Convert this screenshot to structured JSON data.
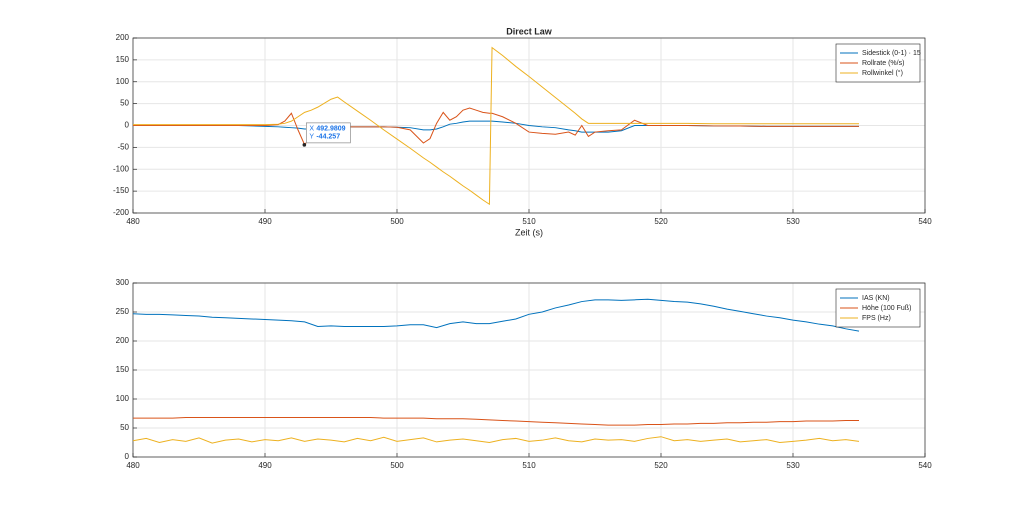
{
  "chart_data": [
    {
      "type": "line",
      "title": "Direct Law",
      "x_label": "Zeit (s)",
      "xlim": [
        480,
        540
      ],
      "xticks": [
        480,
        490,
        500,
        510,
        520,
        530,
        540
      ],
      "ylim": [
        -200,
        200
      ],
      "yticks": [
        -200,
        -150,
        -100,
        -50,
        0,
        50,
        100,
        150,
        200
      ],
      "grid": true,
      "legend": "northeast",
      "x": [
        480,
        482,
        484,
        486,
        488,
        490,
        491,
        491.5,
        492,
        492.5,
        493,
        493.5,
        494,
        495,
        495.5,
        496,
        497,
        498,
        499,
        500,
        501,
        502,
        502.5,
        503,
        503.5,
        504,
        504.5,
        505,
        505.5,
        506,
        506.5,
        507,
        507.2,
        508,
        509,
        510,
        511,
        512,
        513,
        513.5,
        514,
        514.5,
        515,
        516,
        517,
        518,
        519,
        520,
        522,
        524,
        526,
        528,
        530,
        532,
        535
      ],
      "series": [
        {
          "name": "Sidestick (0-1) · 15",
          "color": "#0072BD",
          "values": [
            0,
            0,
            0,
            0,
            0,
            -2,
            -3,
            -4,
            -5,
            -6,
            -8,
            -8,
            -8,
            -3,
            -3,
            -3,
            -3,
            -3,
            -3,
            -4,
            -5,
            -10,
            -10,
            -8,
            -3,
            3,
            5,
            8,
            10,
            10,
            10,
            10,
            10,
            8,
            5,
            0,
            -3,
            -5,
            -10,
            -12,
            -15,
            -15,
            -15,
            -15,
            -12,
            0,
            0,
            0,
            0,
            -1,
            -1,
            -2,
            -2,
            -2,
            -2
          ]
        },
        {
          "name": "Rollrate (%/s)",
          "color": "#D95319",
          "values": [
            0,
            0,
            0,
            0,
            0,
            0,
            2,
            10,
            28,
            -10,
            -44,
            -25,
            -3,
            -3,
            -3,
            -3,
            -3,
            -3,
            -3,
            -4,
            -10,
            -40,
            -30,
            5,
            30,
            12,
            20,
            35,
            40,
            35,
            30,
            28,
            28,
            20,
            5,
            -15,
            -18,
            -20,
            -15,
            -22,
            0,
            -25,
            -15,
            -12,
            -10,
            12,
            0,
            0,
            0,
            -1,
            -1,
            -2,
            -2,
            -2,
            -2
          ]
        },
        {
          "name": "Rollwinkel (°)",
          "color": "#EDB120",
          "values": [
            2,
            2,
            2,
            2,
            2,
            2,
            3,
            5,
            10,
            20,
            30,
            35,
            42,
            60,
            65,
            54,
            33,
            12,
            -10,
            -31,
            -52,
            -74,
            -84,
            -95,
            -106,
            -116,
            -127,
            -138,
            -148,
            -159,
            -170,
            -180,
            178,
            160,
            135,
            112,
            88,
            64,
            40,
            28,
            15,
            5,
            5,
            5,
            5,
            5,
            5,
            5,
            5,
            4,
            4,
            4,
            4,
            4,
            4
          ]
        }
      ],
      "datatip": {
        "x_label": "X",
        "x": 492.9809,
        "y_label": "Y",
        "y": -44.257
      }
    },
    {
      "type": "line",
      "xlim": [
        480,
        540
      ],
      "xticks": [
        480,
        490,
        500,
        510,
        520,
        530,
        540
      ],
      "ylim": [
        0,
        300
      ],
      "yticks": [
        0,
        50,
        100,
        150,
        200,
        250,
        300
      ],
      "grid": true,
      "legend": "northeast",
      "x": [
        480,
        481,
        482,
        483,
        484,
        485,
        486,
        487,
        488,
        489,
        490,
        491,
        492,
        493,
        494,
        495,
        496,
        497,
        498,
        499,
        500,
        501,
        502,
        503,
        504,
        505,
        506,
        507,
        508,
        509,
        510,
        511,
        512,
        513,
        514,
        515,
        516,
        517,
        518,
        519,
        520,
        521,
        522,
        523,
        524,
        525,
        526,
        527,
        528,
        529,
        530,
        531,
        532,
        533,
        534,
        535
      ],
      "series": [
        {
          "name": "IAS (KN)",
          "color": "#0072BD",
          "values": [
            247,
            246,
            246,
            245,
            244,
            243,
            241,
            240,
            239,
            238,
            237,
            236,
            235,
            233,
            225,
            226,
            225,
            225,
            225,
            225,
            226,
            228,
            228,
            223,
            230,
            233,
            230,
            230,
            234,
            238,
            246,
            250,
            257,
            262,
            268,
            271,
            271,
            270,
            271,
            272,
            270,
            268,
            267,
            264,
            260,
            255,
            251,
            247,
            243,
            240,
            236,
            233,
            229,
            226,
            221,
            217
          ]
        },
        {
          "name": "Höhe (100 Fuß)",
          "color": "#D95319",
          "values": [
            67,
            67,
            67,
            67,
            68,
            68,
            68,
            68,
            68,
            68,
            68,
            68,
            68,
            68,
            68,
            68,
            68,
            68,
            68,
            67,
            67,
            67,
            67,
            66,
            66,
            66,
            65,
            64,
            63,
            62,
            61,
            60,
            59,
            58,
            57,
            56,
            55,
            55,
            55,
            56,
            56,
            57,
            57,
            58,
            58,
            59,
            59,
            60,
            60,
            61,
            61,
            62,
            62,
            62,
            63,
            63
          ]
        },
        {
          "name": "FPS (Hz)",
          "color": "#EDB120",
          "values": [
            28,
            32,
            25,
            30,
            27,
            33,
            24,
            29,
            31,
            26,
            30,
            28,
            33,
            27,
            31,
            29,
            26,
            32,
            28,
            34,
            27,
            30,
            33,
            26,
            29,
            31,
            28,
            25,
            30,
            32,
            27,
            29,
            33,
            28,
            26,
            31,
            29,
            30,
            27,
            32,
            35,
            28,
            30,
            27,
            29,
            31,
            26,
            28,
            30,
            25,
            27,
            29,
            32,
            28,
            30,
            27
          ]
        }
      ]
    }
  ]
}
